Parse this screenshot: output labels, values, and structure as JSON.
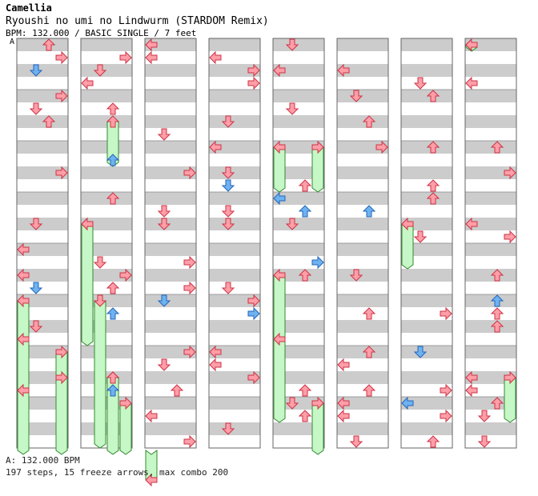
{
  "artist": "Camellia",
  "title": "Ryoushi no umi no Lindwurm (STARDOM Remix)",
  "meta": "BPM: 132.000 / BASIC SINGLE / 7 feet",
  "bpm_marker": "A",
  "footer_bpm": "A: 132.000 BPM",
  "footer_stats": "197 steps, 15 freeze arrows, max combo 200",
  "colors": {
    "quarter": "#ff9ea8",
    "quarter_stroke": "#cc3344",
    "eighth": "#6fb2f0",
    "eighth_stroke": "#2266bb",
    "freeze": "#c6f7c6",
    "freeze_stroke": "#338833",
    "band": "#cccccc"
  },
  "lanes": [
    "left",
    "down",
    "up",
    "right"
  ],
  "columns": [
    {
      "notes": [],
      "freezes": [
        [
          0,
          20,
          34
        ],
        [
          3,
          24,
          40
        ]
      ]
    },
    {
      "notes": [],
      "freezes": [
        [
          0,
          14,
          24
        ],
        [
          1,
          20,
          32
        ],
        [
          2,
          26,
          36
        ],
        [
          3,
          28,
          40
        ],
        [
          2,
          6,
          10
        ]
      ]
    },
    {
      "notes": [],
      "freezes": [
        [
          0,
          34,
          40
        ]
      ]
    },
    {
      "notes": [],
      "freezes": []
    },
    {
      "notes": [],
      "freezes": [
        [
          3,
          28,
          40
        ],
        [
          0,
          18,
          30
        ],
        [
          0,
          8,
          12
        ],
        [
          3,
          8,
          12
        ]
      ]
    },
    {
      "notes": [],
      "freezes": []
    },
    {
      "notes": [],
      "freezes": [
        [
          0,
          14,
          18
        ]
      ]
    },
    {
      "notes": [],
      "freezes": [
        [
          0,
          0,
          1
        ],
        [
          3,
          26,
          30
        ]
      ]
    }
  ]
}
